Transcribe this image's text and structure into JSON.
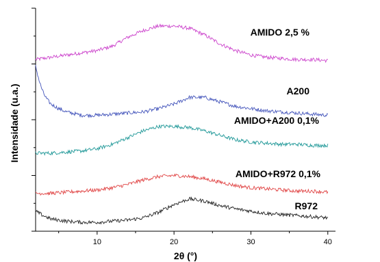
{
  "chart_data": {
    "type": "line",
    "title": "",
    "xlabel": "2θ (°)",
    "ylabel": "Intensidade (u.a.)",
    "xlim": [
      2,
      41
    ],
    "ylim": [
      0,
      100
    ],
    "x_ticks": [
      10,
      20,
      30,
      40
    ],
    "y_ticks_labeled": false,
    "grid": false,
    "legend": "labels next to curves",
    "series": [
      {
        "name": "AMIDO 2,5 %",
        "color": "#cc44cc",
        "x": [
          2,
          4,
          6,
          8,
          10,
          12,
          14,
          16,
          18,
          20,
          22,
          24,
          26,
          28,
          30,
          32,
          34,
          36,
          38,
          40
        ],
        "y": [
          77,
          78,
          79,
          80,
          81,
          83,
          87,
          90,
          92,
          92,
          91,
          88,
          84,
          81,
          79,
          78,
          77.5,
          77,
          77,
          76.5
        ]
      },
      {
        "name": "A200",
        "color": "#4455bb",
        "x": [
          2,
          2.5,
          3,
          3.5,
          4,
          5,
          6,
          8,
          10,
          12,
          14,
          16,
          18,
          20,
          22,
          24,
          26,
          28,
          30,
          32,
          34,
          36,
          38,
          40
        ],
        "y": [
          74,
          67,
          62,
          59,
          57,
          55,
          53.5,
          52,
          52,
          52.5,
          53,
          53.5,
          55,
          57,
          60,
          60,
          58,
          56,
          55,
          54,
          53.5,
          53,
          52.5,
          52
        ]
      },
      {
        "name": "AMIDO+A200 0,1%",
        "color": "#229999",
        "x": [
          2,
          4,
          6,
          8,
          10,
          12,
          14,
          16,
          18,
          20,
          22,
          24,
          26,
          28,
          30,
          32,
          34,
          36,
          38,
          40
        ],
        "y": [
          35,
          35,
          35.5,
          36,
          37,
          39,
          42,
          45,
          47,
          47,
          46.5,
          45,
          43,
          41,
          40,
          39.5,
          39,
          39,
          38.5,
          38.5
        ]
      },
      {
        "name": "AMIDO+R972 0,1%",
        "color": "#e04444",
        "x": [
          2,
          4,
          6,
          8,
          10,
          12,
          14,
          16,
          18,
          20,
          22,
          24,
          26,
          28,
          30,
          32,
          34,
          36,
          38,
          40
        ],
        "y": [
          17,
          17,
          17.5,
          18,
          18.5,
          19.5,
          21,
          23,
          24.5,
          25,
          24.5,
          23.5,
          22,
          20.5,
          19.5,
          19,
          18.5,
          18,
          18,
          17.5
        ]
      },
      {
        "name": "R972",
        "color": "#222222",
        "x": [
          2,
          3,
          4,
          6,
          8,
          10,
          12,
          14,
          16,
          18,
          20,
          22,
          24,
          26,
          28,
          30,
          32,
          34,
          36,
          38,
          40
        ],
        "y": [
          9,
          7,
          5.5,
          4.5,
          4,
          4,
          4.5,
          5,
          6,
          8.5,
          12,
          14.5,
          13.5,
          11.5,
          10,
          9,
          8,
          7.5,
          7,
          6.5,
          6
        ]
      }
    ]
  }
}
